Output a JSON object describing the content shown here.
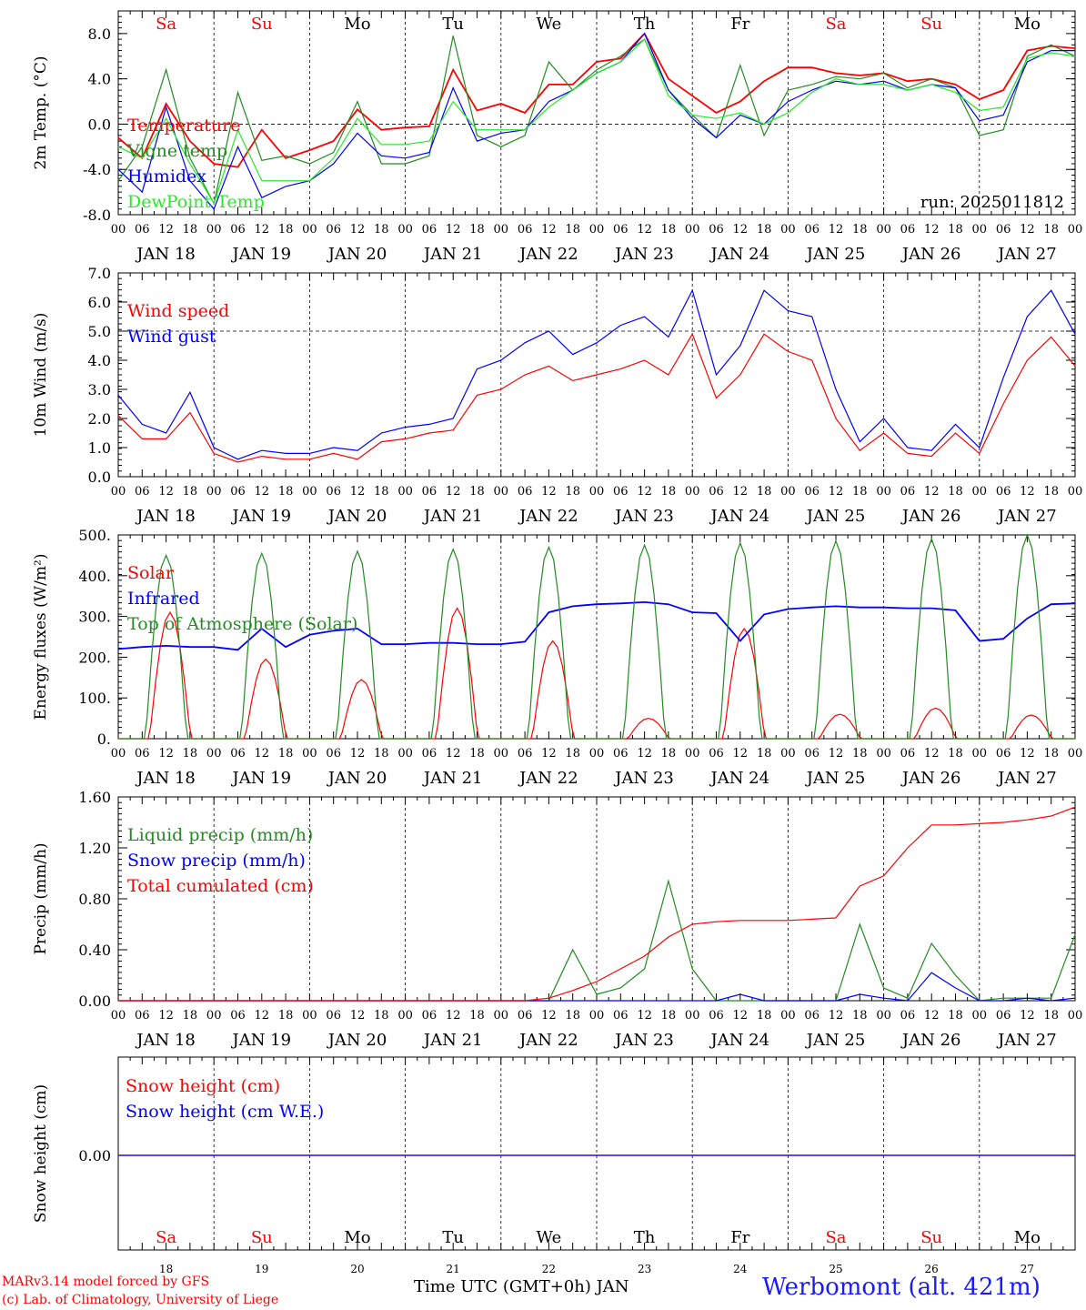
{
  "day_labels": [
    {
      "label": "Sa",
      "color": "#ff0000"
    },
    {
      "label": "Su",
      "color": "#ff0000"
    },
    {
      "label": "Mo",
      "color": "#000000"
    },
    {
      "label": "Tu",
      "color": "#000000"
    },
    {
      "label": "We",
      "color": "#000000"
    },
    {
      "label": "Th",
      "color": "#000000"
    },
    {
      "label": "Fr",
      "color": "#000000"
    },
    {
      "label": "Sa",
      "color": "#ff0000"
    },
    {
      "label": "Su",
      "color": "#ff0000"
    },
    {
      "label": "Mo",
      "color": "#000000"
    }
  ],
  "hour_ticks": [
    "00",
    "06",
    "12",
    "18"
  ],
  "date_labels": [
    "JAN 18",
    "JAN 19",
    "JAN 20",
    "JAN 21",
    "JAN 22",
    "JAN 23",
    "JAN 24",
    "JAN 25",
    "JAN 26",
    "JAN 27"
  ],
  "day_numbers": [
    "18",
    "19",
    "20",
    "21",
    "22",
    "23",
    "24",
    "25",
    "26",
    "27"
  ],
  "run_label": "run: 2025011812",
  "footer": {
    "model_line": "MARv3.14 model forced by GFS",
    "copyright_line": "(c) Lab. of Climatology, University of Liege",
    "time_axis_label": "Time UTC (GMT+0h) JAN",
    "station": "Werbomont (alt. 421m)"
  },
  "chart_data": [
    {
      "type": "line",
      "ylabel": "2m Temp. (°C)",
      "ylim": [
        -8,
        10
      ],
      "yticks": [
        "-8.0",
        "-4.0",
        "0.0",
        "4.0",
        "8.0"
      ],
      "ytick_values": [
        -8,
        -4,
        0,
        4,
        8
      ],
      "ref_line": 0,
      "x_hours": [
        0,
        6,
        12,
        18,
        24,
        30,
        36,
        42,
        48,
        54,
        60,
        66,
        72,
        78,
        84,
        90,
        96,
        102,
        108,
        114,
        120,
        126,
        132,
        138,
        144,
        150,
        156,
        162,
        168,
        174,
        180,
        186,
        192,
        198,
        204,
        210,
        216,
        222,
        228,
        234,
        240
      ],
      "series": [
        {
          "name": "Temperature",
          "color": "#ff0000",
          "values": [
            -1.2,
            -3.0,
            1.8,
            -1.5,
            -3.5,
            -3.8,
            -0.5,
            -3.0,
            -2.3,
            -1.5,
            1.3,
            -0.5,
            -0.3,
            -0.2,
            4.8,
            1.2,
            1.8,
            1.0,
            3.5,
            3.5,
            5.5,
            5.8,
            8.0,
            4.0,
            2.5,
            1.0,
            2.0,
            3.8,
            5.0,
            5.0,
            4.5,
            4.3,
            4.5,
            3.8,
            4.0,
            3.5,
            2.2,
            3.0,
            6.5,
            6.9,
            6.7
          ]
        },
        {
          "name": "Vigne temp",
          "color": "#228b22",
          "values": [
            -5.0,
            -2.0,
            4.8,
            -3.0,
            -7.0,
            2.8,
            -3.2,
            -2.8,
            -3.5,
            -2.5,
            2.0,
            -3.5,
            -3.5,
            -2.8,
            7.8,
            -1.0,
            -2.0,
            -1.0,
            5.5,
            3.0,
            4.8,
            6.0,
            7.5,
            3.0,
            0.8,
            -1.2,
            5.2,
            -1.0,
            3.0,
            3.5,
            4.2,
            4.0,
            4.5,
            3.2,
            4.0,
            3.2,
            -1.0,
            -0.5,
            6.0,
            7.0,
            6.0
          ]
        },
        {
          "name": "Humidex",
          "color": "#0000ff",
          "values": [
            -4.0,
            -6.0,
            1.5,
            -5.0,
            -7.5,
            -2.0,
            -6.5,
            -5.5,
            -5.0,
            -3.5,
            -0.8,
            -2.8,
            -3.0,
            -2.5,
            3.2,
            -1.5,
            -0.8,
            -0.5,
            2.0,
            3.0,
            4.5,
            5.5,
            8.0,
            3.0,
            0.5,
            -1.2,
            0.8,
            0.0,
            2.0,
            3.0,
            3.8,
            3.5,
            3.8,
            3.0,
            3.5,
            3.2,
            0.3,
            0.8,
            5.5,
            6.5,
            6.5
          ]
        },
        {
          "name": "DewPoint Temp",
          "color": "#22ee22",
          "values": [
            -2.0,
            -3.0,
            0.5,
            -3.5,
            -7.0,
            -0.5,
            -5.0,
            -5.0,
            -5.0,
            -3.0,
            0.5,
            -1.8,
            -1.8,
            -1.5,
            2.0,
            -0.5,
            -0.5,
            -0.5,
            1.5,
            3.0,
            4.5,
            5.5,
            7.5,
            2.5,
            0.8,
            0.5,
            1.0,
            0.0,
            1.0,
            2.8,
            4.0,
            3.5,
            3.5,
            3.0,
            3.5,
            2.8,
            1.2,
            1.5,
            5.8,
            6.3,
            6.0
          ]
        }
      ]
    },
    {
      "type": "line",
      "ylabel": "10m Wind (m/s)",
      "ylim": [
        0,
        7
      ],
      "yticks": [
        "0.0",
        "1.0",
        "2.0",
        "3.0",
        "4.0",
        "5.0",
        "6.0",
        "7.0"
      ],
      "ytick_values": [
        0,
        1,
        2,
        3,
        4,
        5,
        6,
        7
      ],
      "ref_line": 5,
      "x_hours": [
        0,
        6,
        12,
        18,
        24,
        30,
        36,
        42,
        48,
        54,
        60,
        66,
        72,
        78,
        84,
        90,
        96,
        102,
        108,
        114,
        120,
        126,
        132,
        138,
        144,
        150,
        156,
        162,
        168,
        174,
        180,
        186,
        192,
        198,
        204,
        210,
        216,
        222,
        228,
        234,
        240
      ],
      "series": [
        {
          "name": "Wind speed",
          "color": "#ff0000",
          "values": [
            2.1,
            1.3,
            1.3,
            2.2,
            0.8,
            0.5,
            0.7,
            0.6,
            0.6,
            0.8,
            0.6,
            1.2,
            1.3,
            1.5,
            1.6,
            2.8,
            3.0,
            3.5,
            3.8,
            3.3,
            3.5,
            3.7,
            4.0,
            3.5,
            4.9,
            2.7,
            3.5,
            4.9,
            4.3,
            4.0,
            2.0,
            0.9,
            1.5,
            0.8,
            0.7,
            1.5,
            0.8,
            2.5,
            4.0,
            4.8,
            3.8
          ]
        },
        {
          "name": "Wind gust",
          "color": "#0000ff",
          "values": [
            2.8,
            1.8,
            1.5,
            2.9,
            1.0,
            0.6,
            0.9,
            0.8,
            0.8,
            1.0,
            0.9,
            1.5,
            1.7,
            1.8,
            2.0,
            3.7,
            4.0,
            4.6,
            5.0,
            4.2,
            4.6,
            5.2,
            5.5,
            4.8,
            6.4,
            3.5,
            4.5,
            6.4,
            5.7,
            5.5,
            3.0,
            1.2,
            2.0,
            1.0,
            0.9,
            1.8,
            1.0,
            3.4,
            5.5,
            6.4,
            4.9
          ]
        }
      ]
    },
    {
      "type": "line",
      "ylabel": "Energy fluxes (W/m²)",
      "ylim": [
        0,
        500
      ],
      "yticks": [
        "0.",
        "100.",
        "200.",
        "300.",
        "400.",
        "500."
      ],
      "ytick_values": [
        0,
        100,
        200,
        300,
        400,
        500
      ],
      "x_hours": [
        0,
        6,
        12,
        18,
        24,
        30,
        36,
        42,
        48,
        54,
        60,
        66,
        72,
        78,
        84,
        90,
        96,
        102,
        108,
        114,
        120,
        126,
        132,
        138,
        144,
        150,
        156,
        162,
        168,
        174,
        180,
        186,
        192,
        198,
        204,
        210,
        216,
        222,
        228,
        234,
        240
      ],
      "series": [
        {
          "name": "Solar",
          "color": "#ff0000",
          "peaks": [
            [
              13,
              310
            ],
            [
              37,
              195
            ],
            [
              61,
              145
            ],
            [
              85,
              320
            ],
            [
              109,
              240
            ],
            [
              133,
              50
            ],
            [
              157,
              270
            ],
            [
              181,
              60
            ],
            [
              205,
              75
            ],
            [
              229,
              58
            ]
          ]
        },
        {
          "name": "Infrared",
          "color": "#0000ff",
          "values": [
            220,
            225,
            228,
            225,
            225,
            218,
            270,
            225,
            255,
            265,
            270,
            232,
            232,
            235,
            235,
            232,
            232,
            238,
            310,
            325,
            330,
            332,
            335,
            330,
            310,
            308,
            240,
            305,
            318,
            322,
            325,
            322,
            322,
            320,
            320,
            315,
            240,
            245,
            295,
            330,
            332
          ]
        },
        {
          "name": "Top of Atmosphere (Solar)",
          "color": "#228b22",
          "peaks": [
            [
              12,
              450
            ],
            [
              36,
              455
            ],
            [
              60,
              460
            ],
            [
              84,
              465
            ],
            [
              108,
              470
            ],
            [
              132,
              475
            ],
            [
              156,
              480
            ],
            [
              180,
              485
            ],
            [
              204,
              490
            ],
            [
              228,
              500
            ]
          ]
        }
      ]
    },
    {
      "type": "line",
      "ylabel": "Precip (mm/h)",
      "ylim": [
        0,
        1.6
      ],
      "yticks": [
        "0.00",
        "0.40",
        "0.80",
        "1.20",
        "1.60"
      ],
      "ytick_values": [
        0,
        0.4,
        0.8,
        1.2,
        1.6
      ],
      "x_hours": [
        0,
        6,
        12,
        18,
        24,
        30,
        36,
        42,
        48,
        54,
        60,
        66,
        72,
        78,
        84,
        90,
        96,
        102,
        108,
        114,
        120,
        126,
        132,
        138,
        144,
        150,
        156,
        162,
        168,
        174,
        180,
        186,
        192,
        198,
        204,
        210,
        216,
        222,
        228,
        234,
        240
      ],
      "series": [
        {
          "name": "Liquid precip (mm/h)",
          "color": "#228b22",
          "values": [
            0,
            0,
            0,
            0,
            0,
            0,
            0,
            0,
            0,
            0,
            0,
            0,
            0,
            0,
            0,
            0,
            0,
            0,
            0,
            0.4,
            0.05,
            0.1,
            0.25,
            0.94,
            0.25,
            0,
            0,
            0,
            0,
            0,
            0,
            0.6,
            0.1,
            0.02,
            0.45,
            0.2,
            0,
            0.02,
            0.02,
            0.02,
            0.52
          ]
        },
        {
          "name": "Snow precip (mm/h)",
          "color": "#0000ff",
          "values": [
            0,
            0,
            0,
            0,
            0,
            0,
            0,
            0,
            0,
            0,
            0,
            0,
            0,
            0,
            0,
            0,
            0,
            0,
            0,
            0,
            0,
            0,
            0,
            0,
            0,
            0,
            0.05,
            0,
            0,
            0,
            0,
            0.05,
            0.02,
            0,
            0.22,
            0.1,
            0,
            0,
            0.02,
            0,
            0.02
          ]
        },
        {
          "name": "Total cumulated (cm)",
          "color": "#ff0000",
          "values": [
            0,
            0,
            0,
            0,
            0,
            0,
            0,
            0,
            0,
            0,
            0,
            0,
            0,
            0,
            0,
            0,
            0,
            0,
            0.02,
            0.08,
            0.15,
            0.25,
            0.35,
            0.5,
            0.6,
            0.62,
            0.63,
            0.63,
            0.63,
            0.64,
            0.65,
            0.9,
            0.98,
            1.2,
            1.38,
            1.38,
            1.39,
            1.4,
            1.42,
            1.45,
            1.52
          ]
        }
      ]
    },
    {
      "type": "line",
      "ylabel": "Snow height (cm)",
      "yticks": [
        "0.00"
      ],
      "series": [
        {
          "name": "Snow height (cm)",
          "color": "#ff0000",
          "values": [
            0,
            0
          ]
        },
        {
          "name": "Snow height (cm W.E.)",
          "color": "#0000ff",
          "values": [
            0,
            0
          ]
        }
      ]
    }
  ]
}
